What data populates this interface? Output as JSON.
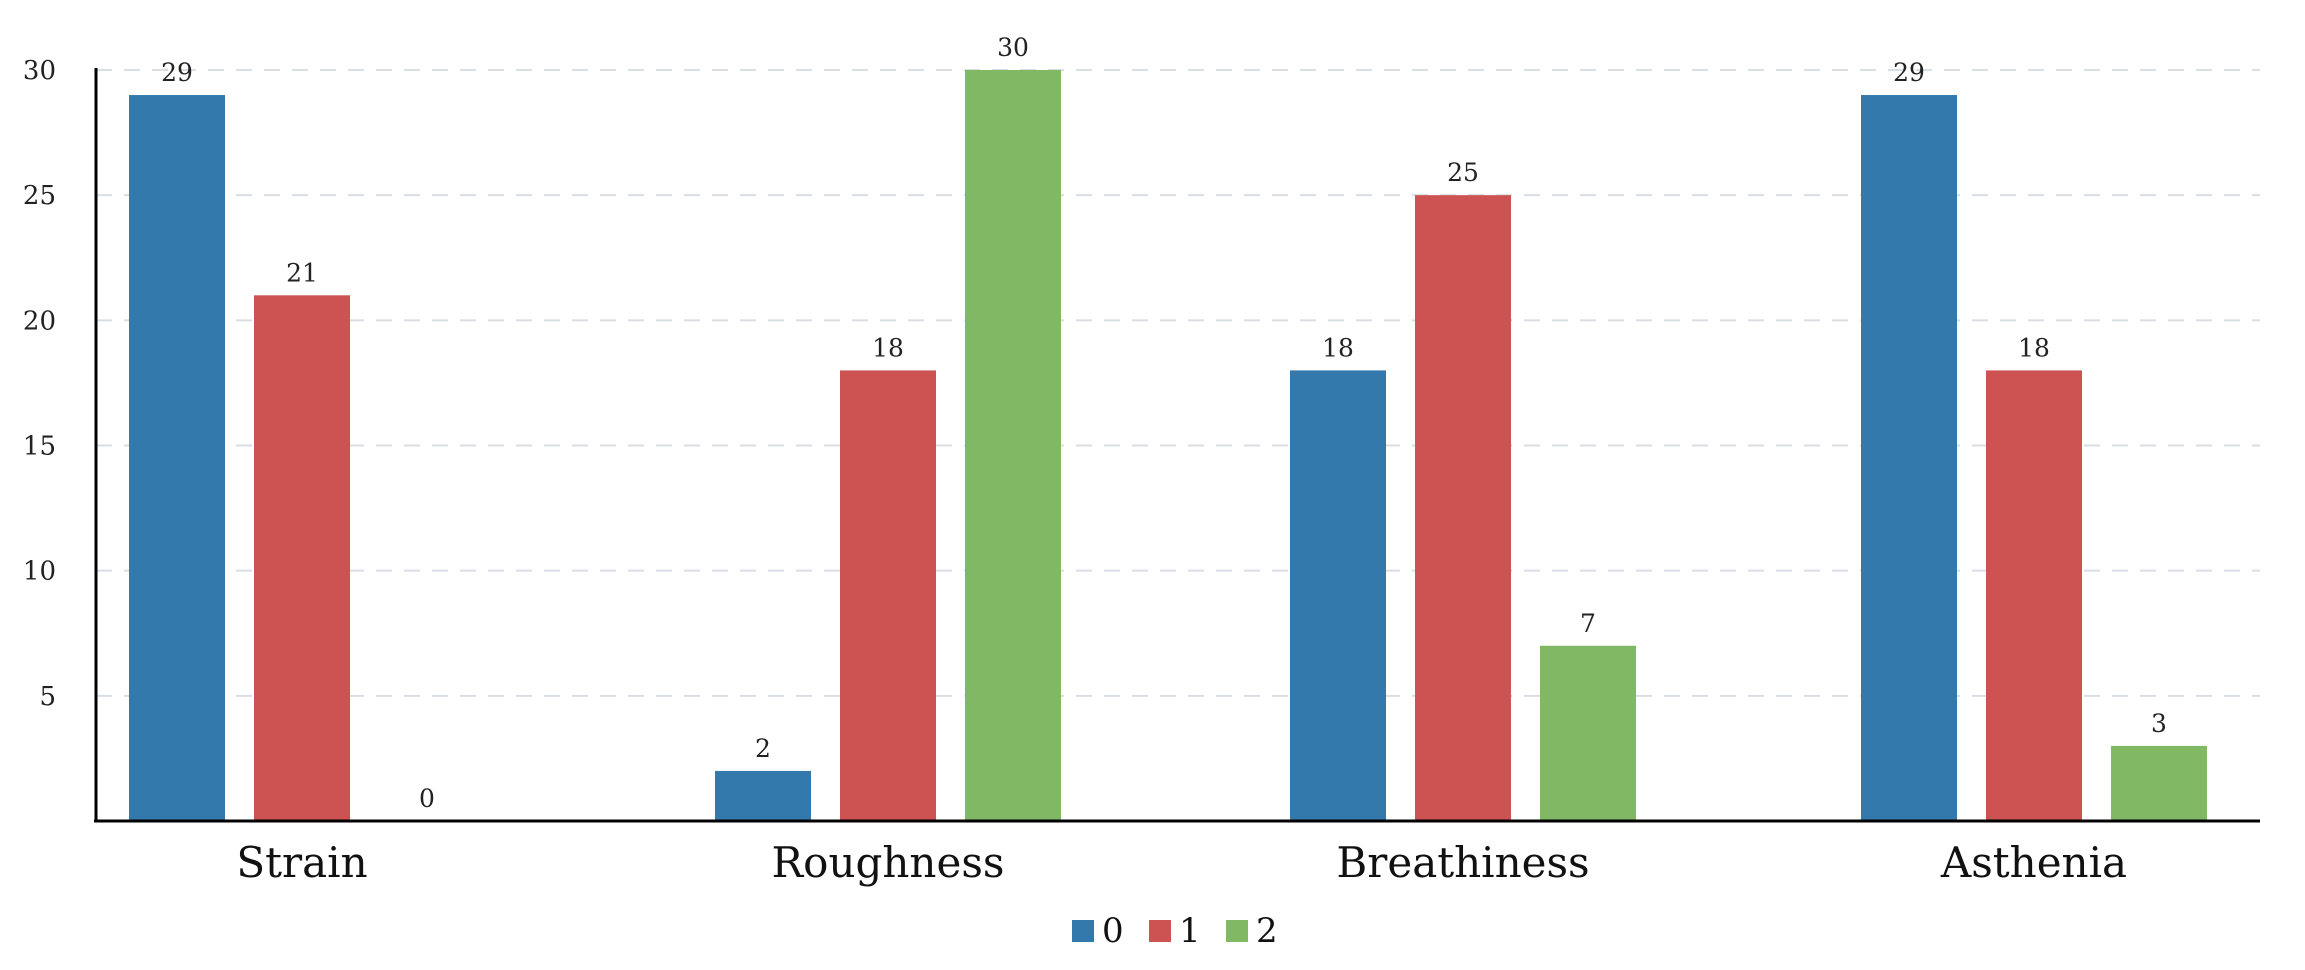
{
  "chart_data": {
    "type": "bar",
    "categories": [
      "Strain",
      "Roughness",
      "Breathiness",
      "Asthenia"
    ],
    "series": [
      {
        "name": "0",
        "color": "#3479ab",
        "values": [
          29,
          2,
          18,
          29
        ]
      },
      {
        "name": "1",
        "color": "#cd5353",
        "values": [
          21,
          18,
          25,
          18
        ]
      },
      {
        "name": "2",
        "color": "#80b864",
        "values": [
          0,
          30,
          7,
          3
        ]
      }
    ],
    "yticks": [
      5,
      10,
      15,
      20,
      25,
      30
    ],
    "ylim": [
      0,
      30
    ],
    "grid": true,
    "legend_position": "bottom-center",
    "data_labels": true
  }
}
